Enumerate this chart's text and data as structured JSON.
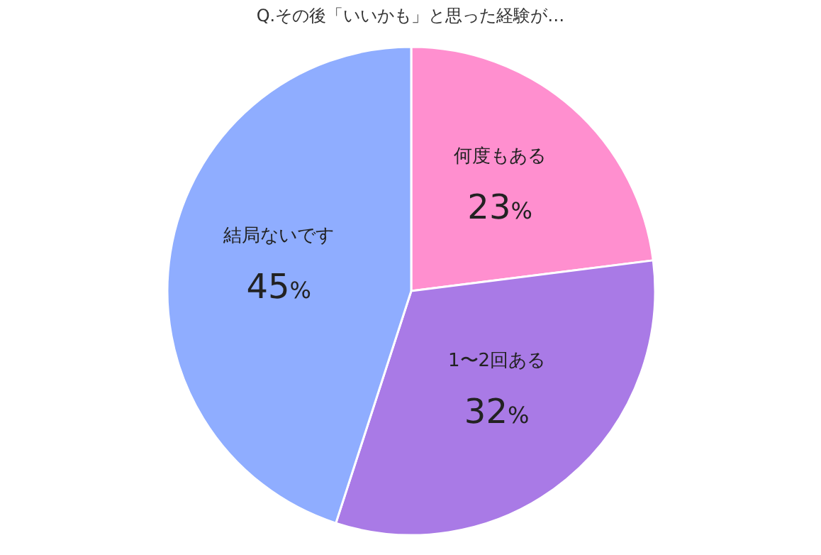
{
  "chart_data": {
    "type": "pie",
    "title": "Q.その後「いいかも」と思った経験が…",
    "categories": [
      "何度もある",
      "1〜2回ある",
      "結局ないです"
    ],
    "values": [
      23,
      32,
      45
    ],
    "colors": [
      "#ff8fcf",
      "#a97ae6",
      "#8fadff"
    ],
    "value_labels": [
      "23%",
      "32%",
      "45%"
    ]
  }
}
